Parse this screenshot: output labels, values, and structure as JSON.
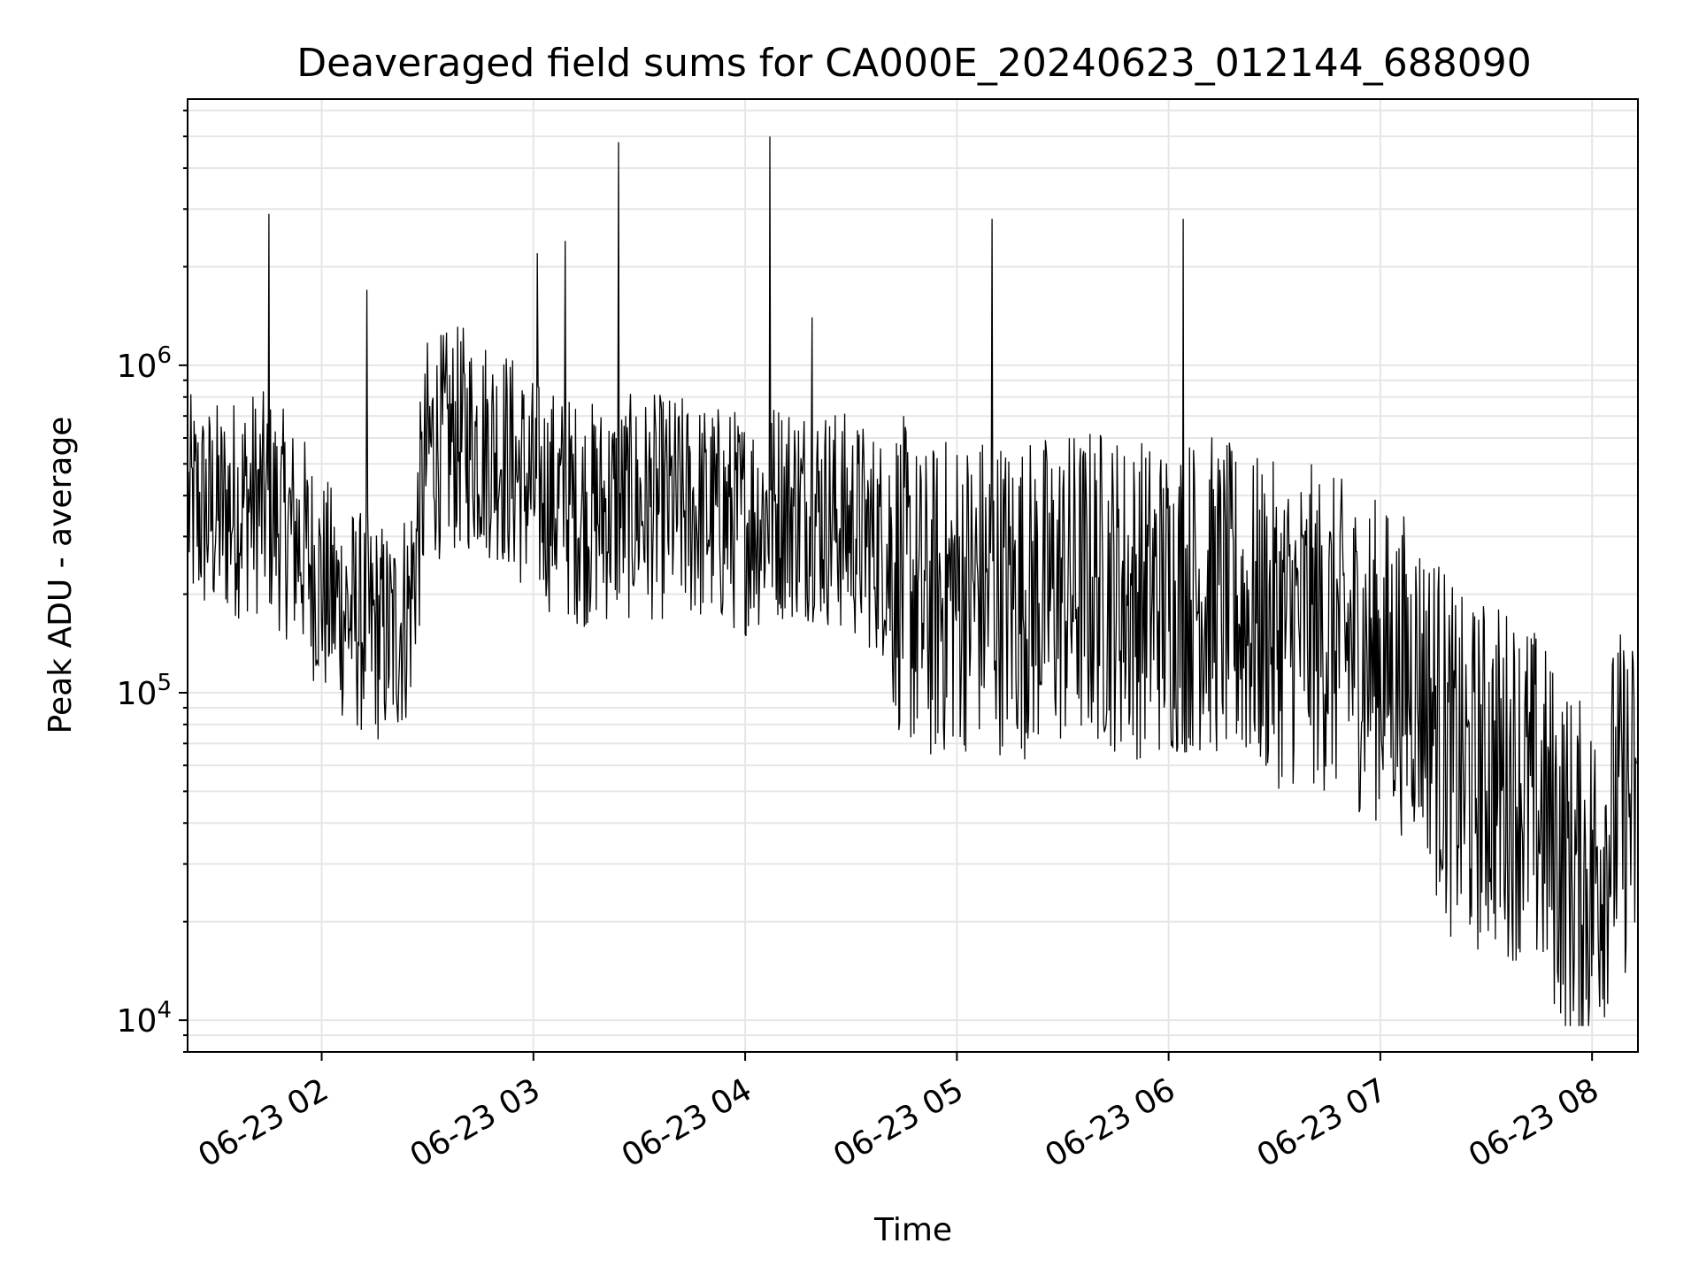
{
  "chart_data": {
    "type": "line",
    "title": "Deaveraged field sums for CA000E_20240623_012144_688090",
    "xlabel": "Time",
    "ylabel": "Peak ADU - average",
    "yscale": "log",
    "ylim": [
      8000,
      6500000
    ],
    "xlim": [
      "06-23 01:22",
      "06-23 08:13"
    ],
    "grid": true,
    "line_color": "#000000",
    "x_ticks": [
      "06-23 02",
      "06-23 03",
      "06-23 04",
      "06-23 05",
      "06-23 06",
      "06-23 07",
      "06-23 08"
    ],
    "y_ticks": [
      {
        "value": 10000,
        "base": "10",
        "exp": "4"
      },
      {
        "value": 100000,
        "base": "10",
        "exp": "5"
      },
      {
        "value": 1000000,
        "base": "10",
        "exp": "6"
      }
    ],
    "series": [
      {
        "x": [
          "06-23 01:22",
          "06-23 01:30",
          "06-23 01:40",
          "06-23 01:45",
          "06-23 01:50",
          "06-23 01:55",
          "06-23 02:00",
          "06-23 02:05",
          "06-23 02:10",
          "06-23 02:15",
          "06-23 02:20",
          "06-23 02:25",
          "06-23 02:30",
          "06-23 02:40",
          "06-23 02:50",
          "06-23 03:00",
          "06-23 03:05",
          "06-23 03:10",
          "06-23 03:15",
          "06-23 03:20",
          "06-23 03:30",
          "06-23 03:40",
          "06-23 03:50",
          "06-23 04:00",
          "06-23 04:10",
          "06-23 04:20",
          "06-23 04:30",
          "06-23 04:40",
          "06-23 04:45",
          "06-23 04:50",
          "06-23 05:00",
          "06-23 05:10",
          "06-23 05:20",
          "06-23 05:30",
          "06-23 05:40",
          "06-23 05:50",
          "06-23 06:00",
          "06-23 06:10",
          "06-23 06:20",
          "06-23 06:30",
          "06-23 06:40",
          "06-23 06:50",
          "06-23 07:00",
          "06-23 07:05",
          "06-23 07:10",
          "06-23 07:15",
          "06-23 07:20",
          "06-23 07:25",
          "06-23 07:30",
          "06-23 07:35",
          "06-23 07:40",
          "06-23 07:45",
          "06-23 07:50",
          "06-23 07:55",
          "06-23 08:00",
          "06-23 08:05",
          "06-23 08:10",
          "06-23 08:13"
        ],
        "values": [
          400000,
          380000,
          420000,
          400000,
          350000,
          300000,
          230000,
          200000,
          180000,
          170000,
          160000,
          200000,
          600000,
          650000,
          600000,
          450000,
          420000,
          400000,
          380000,
          390000,
          400000,
          400000,
          380000,
          360000,
          400000,
          390000,
          350000,
          300000,
          250000,
          200000,
          230000,
          230000,
          220000,
          230000,
          240000,
          220000,
          220000,
          230000,
          200000,
          180000,
          180000,
          160000,
          140000,
          130000,
          125000,
          100000,
          70000,
          60000,
          65000,
          62000,
          60000,
          50000,
          40000,
          32000,
          30000,
          45000,
          55000,
          45000
        ]
      }
    ],
    "spikes": [
      {
        "x": "06-23 01:45",
        "value": 2900000
      },
      {
        "x": "06-23 02:13",
        "value": 1700000
      },
      {
        "x": "06-23 03:01",
        "value": 2200000
      },
      {
        "x": "06-23 03:09",
        "value": 2400000
      },
      {
        "x": "06-23 03:24",
        "value": 4800000
      },
      {
        "x": "06-23 04:07",
        "value": 5000000
      },
      {
        "x": "06-23 04:19",
        "value": 1400000
      },
      {
        "x": "06-23 05:10",
        "value": 2800000
      },
      {
        "x": "06-23 06:04",
        "value": 2800000
      }
    ]
  }
}
